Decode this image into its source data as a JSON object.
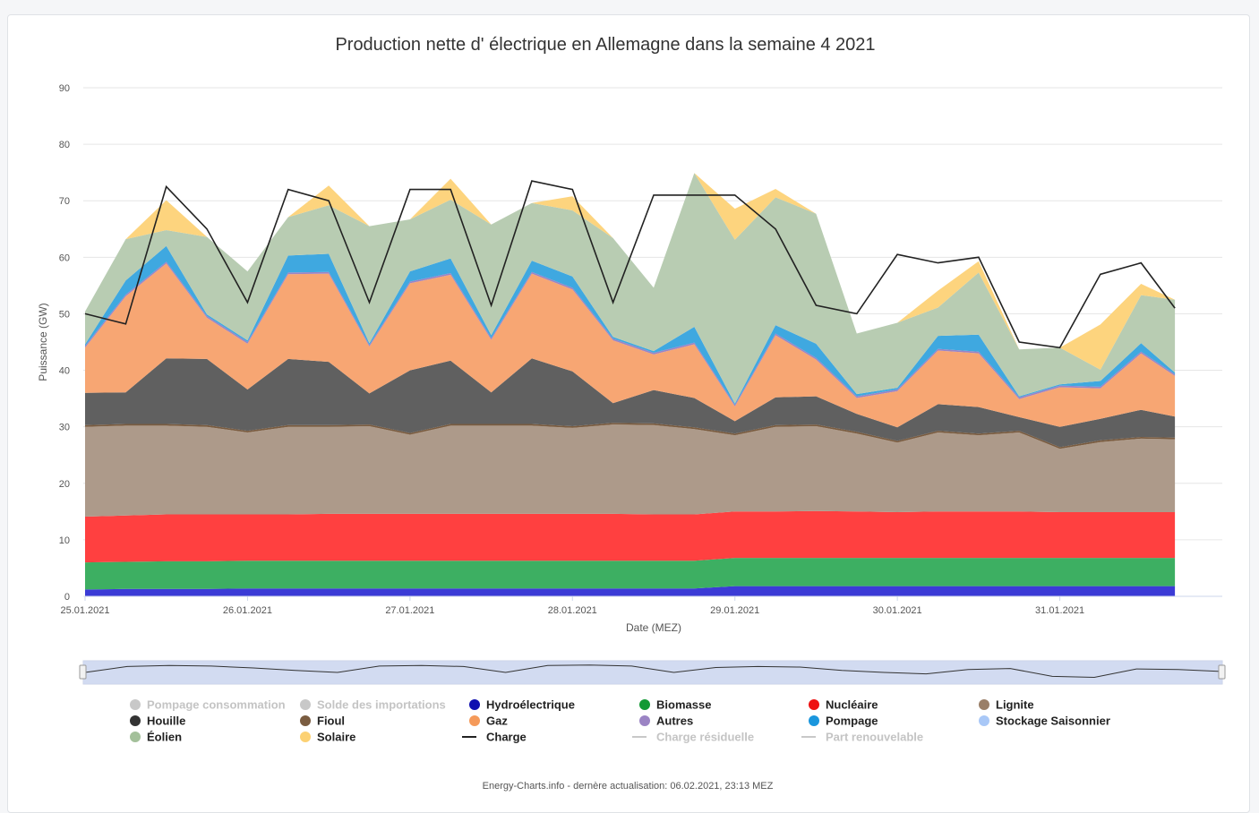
{
  "chart_data": {
    "type": "area",
    "title": "Production nette d' électrique en Allemagne dans la semaine 4 2021",
    "xlabel": "Date (MEZ)",
    "ylabel": "Puissance (GW)",
    "ylim": [
      0,
      90
    ],
    "yticks": [
      "0",
      "10",
      "20",
      "30",
      "40",
      "50",
      "60",
      "70",
      "80",
      "90"
    ],
    "xticks": [
      "25.01.2021",
      "26.01.2021",
      "27.01.2021",
      "28.01.2021",
      "29.01.2021",
      "30.01.2021",
      "31.01.2021"
    ],
    "x_hours": [
      0,
      6,
      12,
      18,
      24,
      30,
      36,
      42,
      48,
      54,
      60,
      66,
      72,
      78,
      84,
      90,
      96,
      102,
      108,
      114,
      120,
      126,
      132,
      138,
      144,
      150,
      156,
      161
    ],
    "grid": true,
    "stacking": "normal",
    "series": [
      {
        "name": "Hydroélectrique",
        "color": "#3b3bd6",
        "values": [
          1.2,
          1.3,
          1.3,
          1.3,
          1.4,
          1.4,
          1.4,
          1.4,
          1.4,
          1.4,
          1.4,
          1.4,
          1.4,
          1.4,
          1.4,
          1.4,
          1.8,
          1.8,
          1.8,
          1.8,
          1.8,
          1.8,
          1.8,
          1.8,
          1.8,
          1.8,
          1.8,
          1.8
        ]
      },
      {
        "name": "Biomasse",
        "color": "#3daf62",
        "values": [
          4.8,
          4.8,
          4.9,
          4.9,
          4.9,
          4.9,
          4.9,
          4.9,
          4.9,
          4.9,
          4.9,
          4.9,
          4.9,
          4.9,
          4.9,
          4.9,
          5.0,
          5.0,
          5.0,
          5.0,
          5.0,
          5.0,
          5.0,
          5.0,
          5.0,
          5.0,
          5.0,
          5.0
        ]
      },
      {
        "name": "Nucléaire",
        "color": "#ff4040",
        "values": [
          8.1,
          8.2,
          8.3,
          8.3,
          8.2,
          8.2,
          8.3,
          8.3,
          8.3,
          8.3,
          8.3,
          8.3,
          8.3,
          8.3,
          8.2,
          8.2,
          8.2,
          8.2,
          8.3,
          8.2,
          8.1,
          8.2,
          8.2,
          8.2,
          8.1,
          8.1,
          8.1,
          8.1
        ]
      },
      {
        "name": "Lignite",
        "color": "#ad9a8a",
        "values": [
          15.9,
          15.9,
          15.7,
          15.5,
          14.5,
          15.5,
          15.4,
          15.5,
          14.0,
          15.6,
          15.6,
          15.6,
          15.2,
          15.8,
          15.8,
          15.1,
          13.5,
          15.0,
          15.0,
          13.8,
          12.3,
          14.0,
          13.5,
          14.0,
          11.2,
          12.4,
          13.0,
          12.9
        ]
      },
      {
        "name": "Fioul",
        "color": "#7a5c40",
        "values": [
          0.3,
          0.3,
          0.3,
          0.3,
          0.3,
          0.3,
          0.3,
          0.3,
          0.3,
          0.3,
          0.3,
          0.3,
          0.3,
          0.3,
          0.3,
          0.3,
          0.3,
          0.3,
          0.3,
          0.3,
          0.3,
          0.3,
          0.3,
          0.3,
          0.3,
          0.3,
          0.3,
          0.3
        ]
      },
      {
        "name": "Houille",
        "color": "#606060",
        "values": [
          5.7,
          5.6,
          11.6,
          11.7,
          7.3,
          11.7,
          11.2,
          5.5,
          11.1,
          11.2,
          5.6,
          11.6,
          9.7,
          3.5,
          5.9,
          5.2,
          2.2,
          4.9,
          5.0,
          3.2,
          2.4,
          4.7,
          4.7,
          2.4,
          3.6,
          3.8,
          4.8,
          3.7
        ]
      },
      {
        "name": "Gaz",
        "color": "#f7a673",
        "values": [
          8.0,
          17.0,
          16.8,
          7.3,
          8.1,
          15.0,
          15.6,
          8.3,
          15.4,
          15.2,
          9.3,
          15.0,
          14.5,
          11.1,
          6.3,
          9.5,
          2.6,
          11.0,
          6.5,
          2.8,
          6.4,
          9.5,
          9.5,
          3.2,
          7.0,
          5.4,
          10.0,
          7.2
        ]
      },
      {
        "name": "Autres",
        "color": "#9b84c4",
        "values": [
          0.3,
          0.3,
          0.3,
          0.3,
          0.3,
          0.3,
          0.3,
          0.3,
          0.3,
          0.3,
          0.3,
          0.3,
          0.3,
          0.3,
          0.3,
          0.3,
          0.3,
          0.3,
          0.3,
          0.3,
          0.3,
          0.3,
          0.3,
          0.3,
          0.3,
          0.3,
          0.3,
          0.3
        ]
      },
      {
        "name": "Pompage",
        "color": "#3fa8e0",
        "values": [
          0.3,
          2.5,
          2.8,
          0.3,
          0.3,
          3.0,
          3.2,
          0.3,
          1.8,
          2.6,
          0.5,
          2.0,
          2.0,
          0.3,
          0.3,
          2.8,
          0.2,
          1.5,
          2.5,
          0.4,
          0.3,
          2.3,
          3.0,
          0.2,
          0.2,
          1.0,
          1.5,
          0.3
        ]
      },
      {
        "name": "Stockage Saisonnier",
        "color": "#aac8f5",
        "values": [
          0,
          0,
          0,
          0,
          0,
          0,
          0,
          0,
          0,
          0,
          0,
          0,
          0,
          0,
          0,
          0,
          0,
          0,
          0,
          0,
          0,
          0,
          0,
          0,
          0,
          0,
          0,
          0
        ]
      },
      {
        "name": "Éolien",
        "color": "#b8ccb2",
        "values": [
          5.8,
          7.3,
          2.8,
          13.7,
          12.2,
          6.8,
          8.6,
          20.7,
          9.2,
          10.4,
          19.6,
          10.2,
          11.7,
          17.5,
          11.2,
          27.2,
          29.0,
          22.6,
          23.0,
          10.7,
          11.5,
          5.0,
          11.0,
          8.3,
          6.5,
          2.0,
          8.5,
          12.9
        ]
      },
      {
        "name": "Solaire",
        "color": "#fdd47e",
        "values": [
          0,
          0,
          5.3,
          0,
          0,
          0,
          3.5,
          0,
          0,
          3.7,
          0,
          0,
          2.5,
          0,
          0,
          0,
          5.5,
          1.5,
          0,
          0,
          0,
          3.0,
          2.0,
          0,
          0,
          8.0,
          2.0,
          0
        ]
      }
    ],
    "line_series": {
      "name": "Charge",
      "color": "#222222",
      "values": [
        50.0,
        48.2,
        72.5,
        65.0,
        52.0,
        72.0,
        70.0,
        52.0,
        72.0,
        72.0,
        51.5,
        73.5,
        72.0,
        52.0,
        71.0,
        71.0,
        71.0,
        65.0,
        51.5,
        50.0,
        60.5,
        59.0,
        60.0,
        45.0,
        44.0,
        57.0,
        59.0,
        51.0
      ]
    },
    "legend_position": "bottom",
    "navigator_line": [
      60,
      72,
      74,
      73,
      69,
      64,
      60,
      73,
      74,
      72,
      60,
      74,
      75,
      73,
      60,
      70,
      72,
      71,
      64,
      60,
      57,
      66,
      68,
      52,
      50,
      67,
      66,
      62
    ]
  },
  "legend": {
    "items": [
      {
        "label": "Pompage consommation",
        "color": "#c8c8c8",
        "marker": "circle",
        "active": false
      },
      {
        "label": "Solde des importations",
        "color": "#c8c8c8",
        "marker": "circle",
        "active": false
      },
      {
        "label": "Hydroélectrique",
        "color": "#1010b0",
        "marker": "circle",
        "active": true
      },
      {
        "label": "Biomasse",
        "color": "#119933",
        "marker": "circle",
        "active": true
      },
      {
        "label": "Nucléaire",
        "color": "#ee1111",
        "marker": "circle",
        "active": true
      },
      {
        "label": "Lignite",
        "color": "#9a7f68",
        "marker": "circle",
        "active": true
      },
      {
        "label": "Houille",
        "color": "#333333",
        "marker": "circle",
        "active": true
      },
      {
        "label": "Fioul",
        "color": "#7a5c40",
        "marker": "circle",
        "active": true
      },
      {
        "label": "Gaz",
        "color": "#f59a5a",
        "marker": "circle",
        "active": true
      },
      {
        "label": "Autres",
        "color": "#9b84c4",
        "marker": "circle",
        "active": true
      },
      {
        "label": "Pompage",
        "color": "#1a96dd",
        "marker": "circle",
        "active": true
      },
      {
        "label": "Stockage Saisonnier",
        "color": "#a9c8f7",
        "marker": "circle",
        "active": true
      },
      {
        "label": "Éolien",
        "color": "#a3c09a",
        "marker": "circle",
        "active": true
      },
      {
        "label": "Solaire",
        "color": "#fcd173",
        "marker": "circle",
        "active": true
      },
      {
        "label": "Charge",
        "color": "#222222",
        "marker": "line",
        "active": true
      },
      {
        "label": "Charge résiduelle",
        "color": "#c8c8c8",
        "marker": "line",
        "active": false
      },
      {
        "label": "Part renouvelable",
        "color": "#c8c8c8",
        "marker": "line",
        "active": false
      }
    ]
  },
  "credits": "Energy-Charts.info - dernère actualisation: 06.02.2021, 23:13 MEZ"
}
